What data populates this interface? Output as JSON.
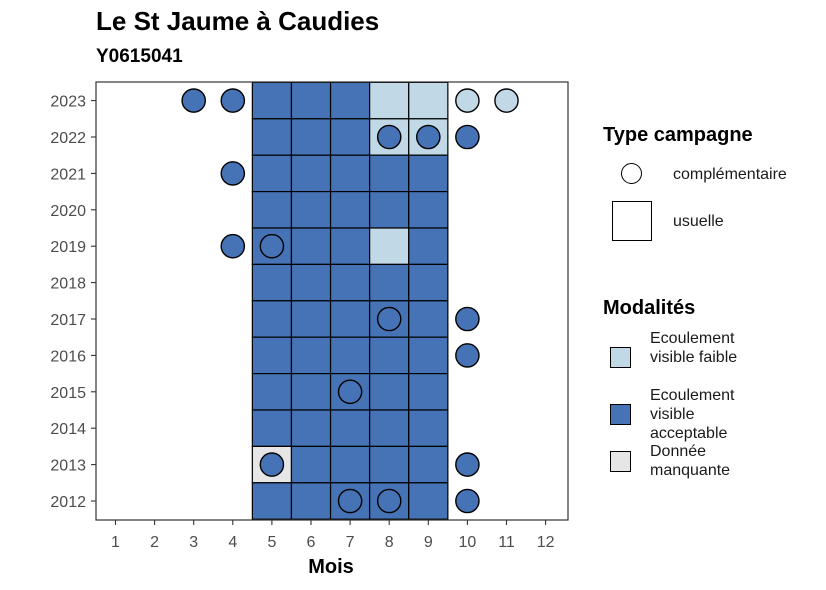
{
  "title": "Le St Jaume à Caudies",
  "subtitle": "Y0615041",
  "chart_data": {
    "type": "heatmap",
    "xlabel": "Mois",
    "ylabel": "",
    "x_ticks": [
      "1",
      "2",
      "3",
      "4",
      "5",
      "6",
      "7",
      "8",
      "9",
      "10",
      "11",
      "12"
    ],
    "y_ticks": [
      "2012",
      "2013",
      "2014",
      "2015",
      "2016",
      "2017",
      "2018",
      "2019",
      "2020",
      "2021",
      "2022",
      "2023"
    ],
    "colors": {
      "faible": "#c1d8e6",
      "acceptable": "#4573b5",
      "manquante": "#e6e6e6"
    },
    "usuelle": [
      {
        "year": 2023,
        "month": 5,
        "modalite": "acceptable"
      },
      {
        "year": 2023,
        "month": 6,
        "modalite": "acceptable"
      },
      {
        "year": 2023,
        "month": 7,
        "modalite": "acceptable"
      },
      {
        "year": 2023,
        "month": 8,
        "modalite": "faible"
      },
      {
        "year": 2023,
        "month": 9,
        "modalite": "faible"
      },
      {
        "year": 2022,
        "month": 5,
        "modalite": "acceptable"
      },
      {
        "year": 2022,
        "month": 6,
        "modalite": "acceptable"
      },
      {
        "year": 2022,
        "month": 7,
        "modalite": "acceptable"
      },
      {
        "year": 2022,
        "month": 8,
        "modalite": "faible"
      },
      {
        "year": 2022,
        "month": 9,
        "modalite": "faible"
      },
      {
        "year": 2021,
        "month": 5,
        "modalite": "acceptable"
      },
      {
        "year": 2021,
        "month": 6,
        "modalite": "acceptable"
      },
      {
        "year": 2021,
        "month": 7,
        "modalite": "acceptable"
      },
      {
        "year": 2021,
        "month": 8,
        "modalite": "acceptable"
      },
      {
        "year": 2021,
        "month": 9,
        "modalite": "acceptable"
      },
      {
        "year": 2020,
        "month": 5,
        "modalite": "acceptable"
      },
      {
        "year": 2020,
        "month": 6,
        "modalite": "acceptable"
      },
      {
        "year": 2020,
        "month": 7,
        "modalite": "acceptable"
      },
      {
        "year": 2020,
        "month": 8,
        "modalite": "acceptable"
      },
      {
        "year": 2020,
        "month": 9,
        "modalite": "acceptable"
      },
      {
        "year": 2019,
        "month": 5,
        "modalite": "acceptable"
      },
      {
        "year": 2019,
        "month": 6,
        "modalite": "acceptable"
      },
      {
        "year": 2019,
        "month": 7,
        "modalite": "acceptable"
      },
      {
        "year": 2019,
        "month": 8,
        "modalite": "faible"
      },
      {
        "year": 2019,
        "month": 9,
        "modalite": "acceptable"
      },
      {
        "year": 2018,
        "month": 5,
        "modalite": "acceptable"
      },
      {
        "year": 2018,
        "month": 6,
        "modalite": "acceptable"
      },
      {
        "year": 2018,
        "month": 7,
        "modalite": "acceptable"
      },
      {
        "year": 2018,
        "month": 8,
        "modalite": "acceptable"
      },
      {
        "year": 2018,
        "month": 9,
        "modalite": "acceptable"
      },
      {
        "year": 2017,
        "month": 5,
        "modalite": "acceptable"
      },
      {
        "year": 2017,
        "month": 6,
        "modalite": "acceptable"
      },
      {
        "year": 2017,
        "month": 7,
        "modalite": "acceptable"
      },
      {
        "year": 2017,
        "month": 8,
        "modalite": "acceptable"
      },
      {
        "year": 2017,
        "month": 9,
        "modalite": "acceptable"
      },
      {
        "year": 2016,
        "month": 5,
        "modalite": "acceptable"
      },
      {
        "year": 2016,
        "month": 6,
        "modalite": "acceptable"
      },
      {
        "year": 2016,
        "month": 7,
        "modalite": "acceptable"
      },
      {
        "year": 2016,
        "month": 8,
        "modalite": "acceptable"
      },
      {
        "year": 2016,
        "month": 9,
        "modalite": "acceptable"
      },
      {
        "year": 2015,
        "month": 5,
        "modalite": "acceptable"
      },
      {
        "year": 2015,
        "month": 6,
        "modalite": "acceptable"
      },
      {
        "year": 2015,
        "month": 7,
        "modalite": "acceptable"
      },
      {
        "year": 2015,
        "month": 8,
        "modalite": "acceptable"
      },
      {
        "year": 2015,
        "month": 9,
        "modalite": "acceptable"
      },
      {
        "year": 2014,
        "month": 5,
        "modalite": "acceptable"
      },
      {
        "year": 2014,
        "month": 6,
        "modalite": "acceptable"
      },
      {
        "year": 2014,
        "month": 7,
        "modalite": "acceptable"
      },
      {
        "year": 2014,
        "month": 8,
        "modalite": "acceptable"
      },
      {
        "year": 2014,
        "month": 9,
        "modalite": "acceptable"
      },
      {
        "year": 2013,
        "month": 5,
        "modalite": "manquante"
      },
      {
        "year": 2013,
        "month": 6,
        "modalite": "acceptable"
      },
      {
        "year": 2013,
        "month": 7,
        "modalite": "acceptable"
      },
      {
        "year": 2013,
        "month": 8,
        "modalite": "acceptable"
      },
      {
        "year": 2013,
        "month": 9,
        "modalite": "acceptable"
      },
      {
        "year": 2012,
        "month": 5,
        "modalite": "acceptable"
      },
      {
        "year": 2012,
        "month": 6,
        "modalite": "acceptable"
      },
      {
        "year": 2012,
        "month": 7,
        "modalite": "acceptable"
      },
      {
        "year": 2012,
        "month": 8,
        "modalite": "acceptable"
      },
      {
        "year": 2012,
        "month": 9,
        "modalite": "acceptable"
      }
    ],
    "complementaire": [
      {
        "year": 2023,
        "month": 3,
        "modalite": "acceptable"
      },
      {
        "year": 2023,
        "month": 4,
        "modalite": "acceptable"
      },
      {
        "year": 2023,
        "month": 10,
        "modalite": "faible"
      },
      {
        "year": 2023,
        "month": 11,
        "modalite": "faible"
      },
      {
        "year": 2022,
        "month": 8,
        "modalite": "acceptable"
      },
      {
        "year": 2022,
        "month": 9,
        "modalite": "acceptable"
      },
      {
        "year": 2022,
        "month": 10,
        "modalite": "acceptable"
      },
      {
        "year": 2021,
        "month": 4,
        "modalite": "acceptable"
      },
      {
        "year": 2019,
        "month": 4,
        "modalite": "acceptable"
      },
      {
        "year": 2019,
        "month": 5,
        "modalite": "acceptable"
      },
      {
        "year": 2017,
        "month": 8,
        "modalite": "acceptable"
      },
      {
        "year": 2017,
        "month": 10,
        "modalite": "acceptable"
      },
      {
        "year": 2016,
        "month": 10,
        "modalite": "acceptable"
      },
      {
        "year": 2015,
        "month": 7,
        "modalite": "acceptable"
      },
      {
        "year": 2013,
        "month": 5,
        "modalite": "acceptable"
      },
      {
        "year": 2013,
        "month": 10,
        "modalite": "acceptable"
      },
      {
        "year": 2012,
        "month": 7,
        "modalite": "acceptable"
      },
      {
        "year": 2012,
        "month": 8,
        "modalite": "acceptable"
      },
      {
        "year": 2012,
        "month": 10,
        "modalite": "acceptable"
      }
    ],
    "legend": {
      "type_title": "Type campagne",
      "type_items": [
        "complémentaire",
        "usuelle"
      ],
      "modalite_title": "Modalités",
      "modalite_items": [
        {
          "key": "faible",
          "label": "Ecoulement visible faible"
        },
        {
          "key": "acceptable",
          "label": "Ecoulement visible acceptable"
        },
        {
          "key": "manquante",
          "label": "Donnée manquante"
        }
      ]
    }
  }
}
